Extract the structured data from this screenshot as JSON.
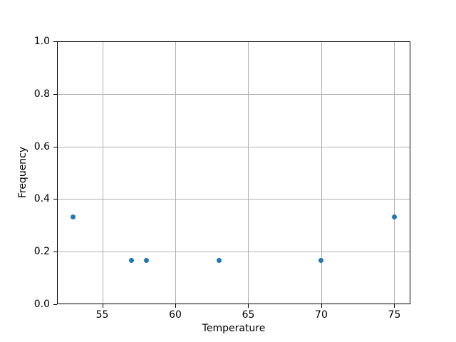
{
  "chart_data": {
    "type": "scatter",
    "title": "",
    "xlabel": "Temperature",
    "ylabel": "Frequency",
    "xlim": [
      51.9,
      76.1
    ],
    "ylim": [
      0.0,
      1.0
    ],
    "x_ticks": [
      55,
      60,
      65,
      70,
      75
    ],
    "x_tick_labels": [
      "55",
      "60",
      "65",
      "70",
      "75"
    ],
    "y_ticks": [
      0.0,
      0.2,
      0.4,
      0.6,
      0.8,
      1.0
    ],
    "y_tick_labels": [
      "0.0",
      "0.2",
      "0.4",
      "0.6",
      "0.8",
      "1.0"
    ],
    "grid": true,
    "legend": false,
    "series": [
      {
        "name": "frequency-vs-temperature",
        "marker": "circle",
        "color": "#1f77b4",
        "points": [
          {
            "x": 53,
            "y": 0.333
          },
          {
            "x": 57,
            "y": 0.167
          },
          {
            "x": 58,
            "y": 0.167
          },
          {
            "x": 63,
            "y": 0.167
          },
          {
            "x": 70,
            "y": 0.167
          },
          {
            "x": 75,
            "y": 0.333
          }
        ]
      }
    ],
    "colors": {
      "marker": "#1f77b4",
      "grid": "#b0b0b0",
      "spine": "#000000",
      "tick": "#000000",
      "text": "#000000",
      "background": "#ffffff"
    }
  }
}
